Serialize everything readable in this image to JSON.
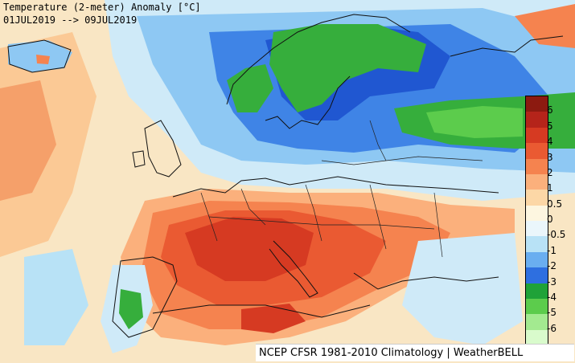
{
  "title": "Temperature (2-meter) Anomaly [°C]",
  "date_range": "01JUL2019 --> 09JUL2019",
  "credit": "NCEP CFSR 1981-2010 Climatology | WeatherBELL",
  "legend": {
    "labels": [
      "6",
      "5",
      "4",
      "3",
      "2",
      "1",
      "0.5",
      "0",
      "-0.5",
      "-1",
      "-2",
      "-3",
      "-4",
      "-5",
      "-6"
    ],
    "colors": [
      "#8c1a10",
      "#b5241a",
      "#d63a22",
      "#ea5a32",
      "#f5834f",
      "#fbb07c",
      "#fcd7a6",
      "#fdf6e0",
      "#eaf6fb",
      "#b8e2f6",
      "#6aaef0",
      "#2e6fe0",
      "#1fa238",
      "#5ccc4c",
      "#a3ea90",
      "#d9fbcc"
    ],
    "palette": {
      "ocean_neutral": "#f8e8c8",
      "warm_light": "#fbd29a",
      "warm": "#f59a63",
      "hot": "#e8583a",
      "very_hot": "#d2381f",
      "cool_light": "#cfeaf8",
      "cool": "#8ec8f3",
      "cold": "#3f84e6",
      "very_cold": "#2057d1",
      "green": "#36ae3c"
    }
  }
}
